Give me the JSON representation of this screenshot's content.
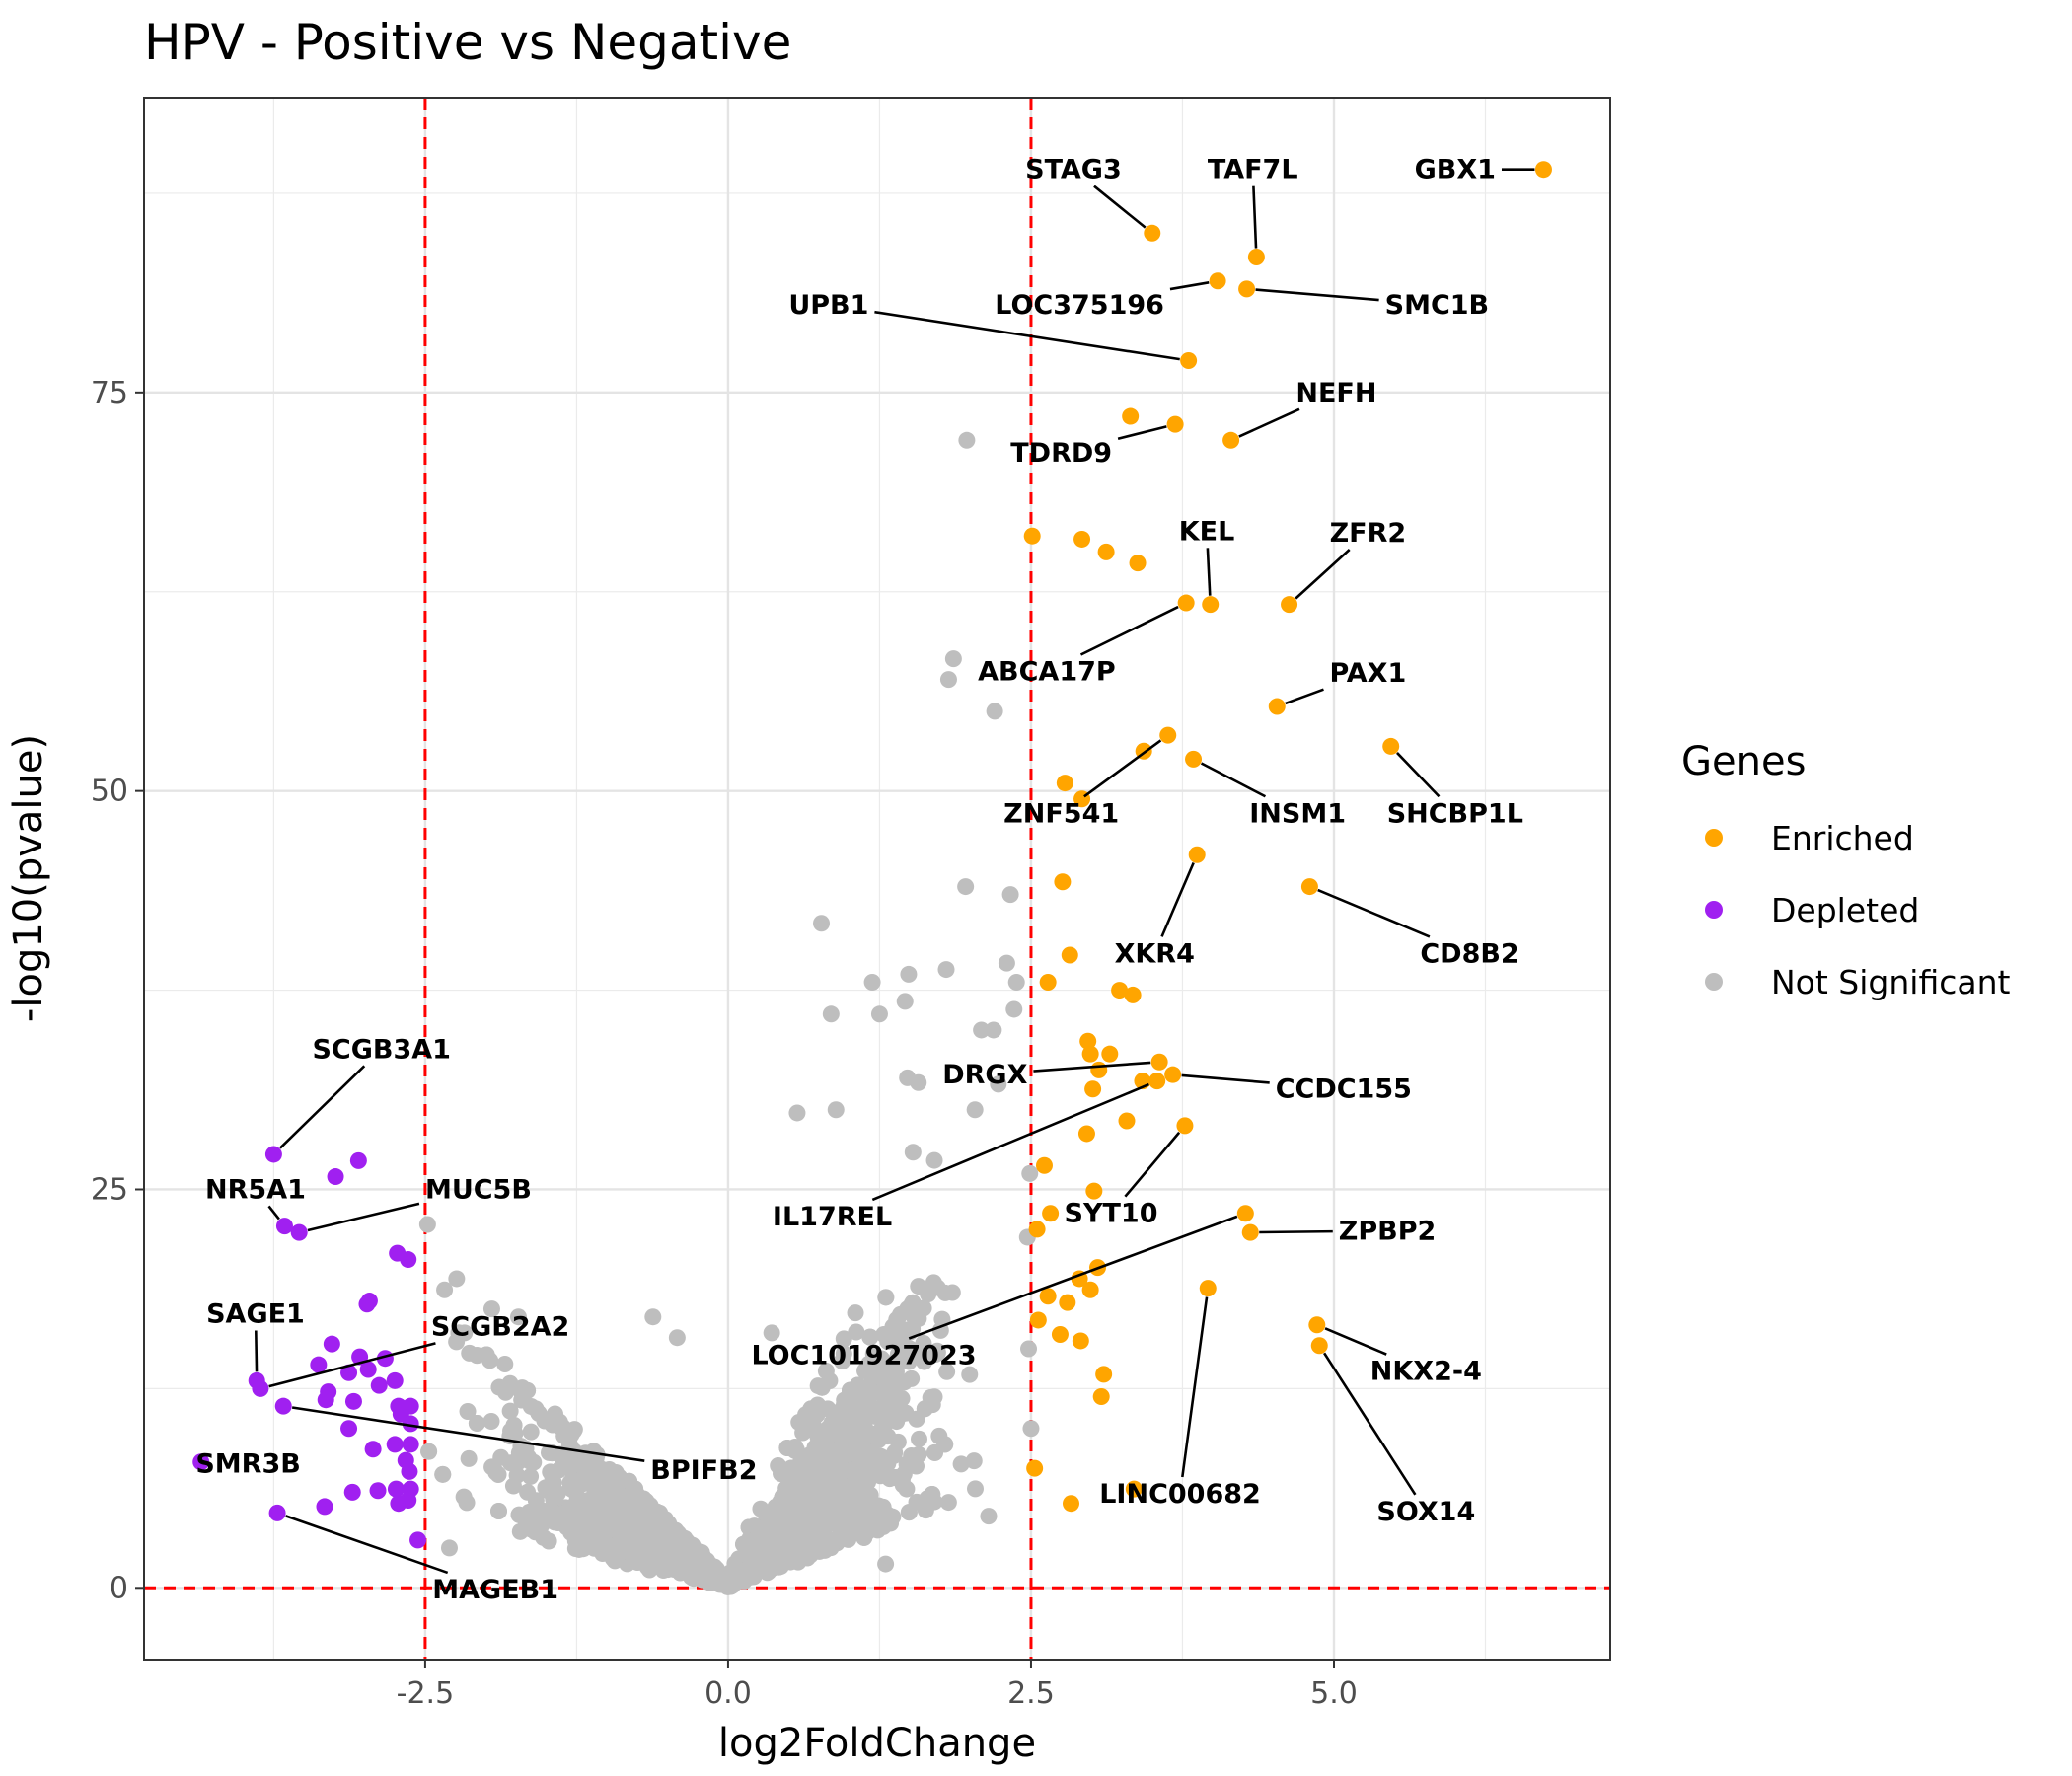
{
  "chart_data": {
    "type": "scatter",
    "title": "HPV - Positive vs Negative",
    "xlabel": "log2FoldChange",
    "ylabel": "-log10(pvalue)",
    "xlim": [
      -4.82,
      7.28
    ],
    "ylim": [
      -4.5,
      93.5
    ],
    "x_ticks": [
      -2.5,
      0,
      2.5,
      5
    ],
    "x_tick_labels": [
      "-2.5",
      "0.0",
      "2.5",
      "5.0"
    ],
    "y_ticks": [
      0,
      25,
      50,
      75
    ],
    "y_tick_labels": [
      "0",
      "25",
      "50",
      "75"
    ],
    "grid": true,
    "thresholds": {
      "log2fc": [
        -2.5,
        2.5
      ],
      "neglog10p": 0
    },
    "legend": {
      "title": "Genes",
      "placement": "right",
      "items": [
        {
          "label": "Enriched",
          "color": "#FFA500"
        },
        {
          "label": "Depleted",
          "color": "#A020F0"
        },
        {
          "label": "Not Significant",
          "color": "#BEBEBE"
        }
      ]
    },
    "colors": {
      "Enriched": "#FFA500",
      "Depleted": "#A020F0",
      "Not Significant": "#BEBEBE",
      "threshold": "#FF0000"
    },
    "series": [
      {
        "name": "Enriched",
        "points": [
          {
            "x": 6.73,
            "y": 89.0,
            "gene": "GBX1"
          },
          {
            "x": 3.5,
            "y": 85.0,
            "gene": "STAG3"
          },
          {
            "x": 4.36,
            "y": 83.5,
            "gene": "TAF7L"
          },
          {
            "x": 4.04,
            "y": 82.0,
            "gene": "LOC375196"
          },
          {
            "x": 4.28,
            "y": 81.5,
            "gene": "SMC1B"
          },
          {
            "x": 3.8,
            "y": 77.0,
            "gene": "UPB1"
          },
          {
            "x": 3.32,
            "y": 73.5
          },
          {
            "x": 3.69,
            "y": 73.0,
            "gene": "TDRD9"
          },
          {
            "x": 4.15,
            "y": 72.0,
            "gene": "NEFH"
          },
          {
            "x": 2.51,
            "y": 66.0
          },
          {
            "x": 2.92,
            "y": 65.8
          },
          {
            "x": 3.12,
            "y": 65.0
          },
          {
            "x": 3.38,
            "y": 64.3
          },
          {
            "x": 3.78,
            "y": 61.8,
            "gene": "ABCA17P"
          },
          {
            "x": 3.98,
            "y": 61.7,
            "gene": "KEL"
          },
          {
            "x": 4.63,
            "y": 61.7,
            "gene": "ZFR2"
          },
          {
            "x": 4.53,
            "y": 55.3,
            "gene": "PAX1"
          },
          {
            "x": 3.63,
            "y": 53.5,
            "gene": "ZNF541"
          },
          {
            "x": 3.43,
            "y": 52.5
          },
          {
            "x": 3.84,
            "y": 52.0,
            "gene": "INSM1"
          },
          {
            "x": 5.47,
            "y": 52.8,
            "gene": "SHCBP1L"
          },
          {
            "x": 2.78,
            "y": 50.5
          },
          {
            "x": 2.92,
            "y": 49.5
          },
          {
            "x": 3.87,
            "y": 46.0,
            "gene": "XKR4"
          },
          {
            "x": 4.8,
            "y": 44.0,
            "gene": "CD8B2"
          },
          {
            "x": 2.76,
            "y": 44.3
          },
          {
            "x": 2.82,
            "y": 39.7
          },
          {
            "x": 2.64,
            "y": 38.0
          },
          {
            "x": 3.23,
            "y": 37.5
          },
          {
            "x": 3.34,
            "y": 37.2
          },
          {
            "x": 2.97,
            "y": 34.3
          },
          {
            "x": 2.99,
            "y": 33.5
          },
          {
            "x": 3.15,
            "y": 33.5
          },
          {
            "x": 3.06,
            "y": 32.5
          },
          {
            "x": 3.56,
            "y": 33.0,
            "gene": "DRGX"
          },
          {
            "x": 3.67,
            "y": 32.2,
            "gene": "CCDC155"
          },
          {
            "x": 3.54,
            "y": 31.8,
            "gene": "IL17REL"
          },
          {
            "x": 3.42,
            "y": 31.8
          },
          {
            "x": 3.01,
            "y": 31.3
          },
          {
            "x": 3.29,
            "y": 29.3
          },
          {
            "x": 3.77,
            "y": 29.0,
            "gene": "SYT10"
          },
          {
            "x": 2.96,
            "y": 28.5
          },
          {
            "x": 2.61,
            "y": 26.5
          },
          {
            "x": 3.02,
            "y": 24.9
          },
          {
            "x": 2.66,
            "y": 23.5
          },
          {
            "x": 4.27,
            "y": 23.5,
            "gene": "LOC101927023"
          },
          {
            "x": 4.31,
            "y": 22.3,
            "gene": "ZPBP2"
          },
          {
            "x": 2.55,
            "y": 22.5
          },
          {
            "x": 3.05,
            "y": 20.1
          },
          {
            "x": 2.9,
            "y": 19.4
          },
          {
            "x": 2.99,
            "y": 18.7
          },
          {
            "x": 2.64,
            "y": 18.3
          },
          {
            "x": 2.8,
            "y": 17.9
          },
          {
            "x": 3.96,
            "y": 18.8,
            "gene": "LINC00682"
          },
          {
            "x": 2.56,
            "y": 16.8
          },
          {
            "x": 2.74,
            "y": 15.9
          },
          {
            "x": 2.91,
            "y": 15.5
          },
          {
            "x": 4.86,
            "y": 16.5,
            "gene": "NKX2-4"
          },
          {
            "x": 4.88,
            "y": 15.2,
            "gene": "SOX14"
          },
          {
            "x": 3.1,
            "y": 13.4
          },
          {
            "x": 3.08,
            "y": 12.0
          },
          {
            "x": 2.53,
            "y": 7.5
          },
          {
            "x": 3.35,
            "y": 6.2
          },
          {
            "x": 2.83,
            "y": 5.3
          }
        ]
      },
      {
        "name": "Depleted",
        "points": [
          {
            "x": -3.75,
            "y": 27.2,
            "gene": "SCGB3A1"
          },
          {
            "x": -3.05,
            "y": 26.8
          },
          {
            "x": -3.24,
            "y": 25.8
          },
          {
            "x": -3.66,
            "y": 22.7,
            "gene": "NR5A1"
          },
          {
            "x": -3.54,
            "y": 22.3,
            "gene": "MUC5B"
          },
          {
            "x": -2.73,
            "y": 21.0
          },
          {
            "x": -2.64,
            "y": 20.6
          },
          {
            "x": -2.96,
            "y": 18.0
          },
          {
            "x": -2.98,
            "y": 17.8
          },
          {
            "x": -3.27,
            "y": 15.3
          },
          {
            "x": -3.04,
            "y": 14.5
          },
          {
            "x": -2.83,
            "y": 14.4
          },
          {
            "x": -3.38,
            "y": 14.0
          },
          {
            "x": -2.97,
            "y": 13.7
          },
          {
            "x": -3.13,
            "y": 13.5
          },
          {
            "x": -2.75,
            "y": 13.0
          },
          {
            "x": -3.89,
            "y": 13.0,
            "gene": "SAGE1"
          },
          {
            "x": -3.86,
            "y": 12.5,
            "gene": "SCGB2A2"
          },
          {
            "x": -2.88,
            "y": 12.7
          },
          {
            "x": -3.3,
            "y": 12.3
          },
          {
            "x": -3.32,
            "y": 11.8
          },
          {
            "x": -3.09,
            "y": 11.7
          },
          {
            "x": -2.72,
            "y": 11.4
          },
          {
            "x": -2.62,
            "y": 11.4
          },
          {
            "x": -3.67,
            "y": 11.4,
            "gene": "BPIFB2"
          },
          {
            "x": -2.7,
            "y": 10.9
          },
          {
            "x": -2.62,
            "y": 10.3
          },
          {
            "x": -3.13,
            "y": 10.0
          },
          {
            "x": -2.75,
            "y": 9.0
          },
          {
            "x": -2.62,
            "y": 9.0
          },
          {
            "x": -2.93,
            "y": 8.7
          },
          {
            "x": -2.66,
            "y": 8.0
          },
          {
            "x": -4.35,
            "y": 7.9,
            "gene": "SMR3B"
          },
          {
            "x": -2.63,
            "y": 7.3
          },
          {
            "x": -2.74,
            "y": 6.2
          },
          {
            "x": -2.62,
            "y": 6.2
          },
          {
            "x": -2.89,
            "y": 6.1
          },
          {
            "x": -3.1,
            "y": 6.0
          },
          {
            "x": -2.72,
            "y": 5.3
          },
          {
            "x": -2.64,
            "y": 5.5
          },
          {
            "x": -3.33,
            "y": 5.1
          },
          {
            "x": -3.72,
            "y": 4.7,
            "gene": "MAGEB1"
          },
          {
            "x": -2.56,
            "y": 3.0
          }
        ]
      },
      {
        "name": "Not Significant",
        "points": [
          {
            "x": 1.97,
            "y": 72.0
          },
          {
            "x": 1.86,
            "y": 58.3
          },
          {
            "x": 1.82,
            "y": 57.0
          },
          {
            "x": 2.2,
            "y": 55.0
          },
          {
            "x": 1.96,
            "y": 44.0
          },
          {
            "x": 2.33,
            "y": 43.5
          },
          {
            "x": 0.77,
            "y": 41.7
          },
          {
            "x": 2.3,
            "y": 39.2
          },
          {
            "x": 1.8,
            "y": 38.8
          },
          {
            "x": 1.49,
            "y": 38.5
          },
          {
            "x": 1.19,
            "y": 38.0
          },
          {
            "x": 2.38,
            "y": 38.0
          },
          {
            "x": 0.85,
            "y": 36.0
          },
          {
            "x": 1.46,
            "y": 36.8
          },
          {
            "x": 1.25,
            "y": 36.0
          },
          {
            "x": 2.36,
            "y": 36.3
          },
          {
            "x": 2.09,
            "y": 35.0
          },
          {
            "x": 2.19,
            "y": 35.0
          },
          {
            "x": 1.48,
            "y": 32.0
          },
          {
            "x": 1.57,
            "y": 31.7
          },
          {
            "x": 2.23,
            "y": 31.6
          },
          {
            "x": 0.57,
            "y": 29.8
          },
          {
            "x": 0.89,
            "y": 30.0
          },
          {
            "x": 2.49,
            "y": 26.0
          },
          {
            "x": 2.47,
            "y": 22.0
          },
          {
            "x": -2.48,
            "y": 22.8
          },
          {
            "x": -2.24,
            "y": 19.4
          },
          {
            "x": -2.34,
            "y": 18.7
          },
          {
            "x": -1.95,
            "y": 17.5
          },
          {
            "x": -1.73,
            "y": 17.0
          },
          {
            "x": -0.62,
            "y": 17.0
          },
          {
            "x": 0.36,
            "y": 16.0
          },
          {
            "x": -0.42,
            "y": 15.7
          },
          {
            "x": 2.48,
            "y": 15.0
          },
          {
            "x": 2.5,
            "y": 10.0
          },
          {
            "x": 2.15,
            "y": 4.5
          },
          {
            "x": 1.3,
            "y": 1.5
          },
          {
            "x": -2.3,
            "y": 2.5
          }
        ],
        "dense_cloud_note": "Thousands of further non-significant genes lie between log2FoldChange -2.5 and 2.5 with -log10(pvalue) below about 30, forming a V shape centred on 0."
      }
    ],
    "labels": [
      {
        "gene": "GBX1",
        "tx": 6.0,
        "ty": 89.0
      },
      {
        "gene": "STAG3",
        "tx": 2.85,
        "ty": 89.0
      },
      {
        "gene": "TAF7L",
        "tx": 4.33,
        "ty": 89.0
      },
      {
        "gene": "LOC375196",
        "tx": 2.9,
        "ty": 80.5
      },
      {
        "gene": "SMC1B",
        "tx": 5.85,
        "ty": 80.5
      },
      {
        "gene": "UPB1",
        "tx": 0.83,
        "ty": 80.5
      },
      {
        "gene": "NEFH",
        "tx": 5.02,
        "ty": 75.0
      },
      {
        "gene": "TDRD9",
        "tx": 2.75,
        "ty": 71.2
      },
      {
        "gene": "KEL",
        "tx": 3.95,
        "ty": 66.3
      },
      {
        "gene": "ZFR2",
        "tx": 5.28,
        "ty": 66.2
      },
      {
        "gene": "ABCA17P",
        "tx": 2.63,
        "ty": 57.5
      },
      {
        "gene": "PAX1",
        "tx": 5.28,
        "ty": 57.4
      },
      {
        "gene": "ZNF541",
        "tx": 2.75,
        "ty": 48.6
      },
      {
        "gene": "INSM1",
        "tx": 4.7,
        "ty": 48.6
      },
      {
        "gene": "SHCBP1L",
        "tx": 6.0,
        "ty": 48.6
      },
      {
        "gene": "XKR4",
        "tx": 3.52,
        "ty": 39.8
      },
      {
        "gene": "CD8B2",
        "tx": 6.12,
        "ty": 39.8
      },
      {
        "gene": "DRGX",
        "tx": 2.12,
        "ty": 32.2
      },
      {
        "gene": "CCDC155",
        "tx": 5.08,
        "ty": 31.3
      },
      {
        "gene": "IL17REL",
        "tx": 0.86,
        "ty": 23.3
      },
      {
        "gene": "SYT10",
        "tx": 3.16,
        "ty": 23.5
      },
      {
        "gene": "ZPBP2",
        "tx": 5.44,
        "ty": 22.4
      },
      {
        "gene": "LOC101927023",
        "tx": 1.12,
        "ty": 14.6
      },
      {
        "gene": "NKX2-4",
        "tx": 5.76,
        "ty": 13.6
      },
      {
        "gene": "LINC00682",
        "tx": 3.73,
        "ty": 5.9
      },
      {
        "gene": "SOX14",
        "tx": 5.76,
        "ty": 4.8
      },
      {
        "gene": "SCGB3A1",
        "tx": -2.86,
        "ty": 33.8
      },
      {
        "gene": "NR5A1",
        "tx": -3.9,
        "ty": 25.0
      },
      {
        "gene": "MUC5B",
        "tx": -2.06,
        "ty": 25.0
      },
      {
        "gene": "SAGE1",
        "tx": -3.9,
        "ty": 17.2
      },
      {
        "gene": "SCGB2A2",
        "tx": -1.88,
        "ty": 16.4
      },
      {
        "gene": "SMR3B",
        "tx": -3.96,
        "ty": 7.8
      },
      {
        "gene": "BPIFB2",
        "tx": -0.2,
        "ty": 7.4
      },
      {
        "gene": "MAGEB1",
        "tx": -1.92,
        "ty": -0.1
      }
    ]
  }
}
